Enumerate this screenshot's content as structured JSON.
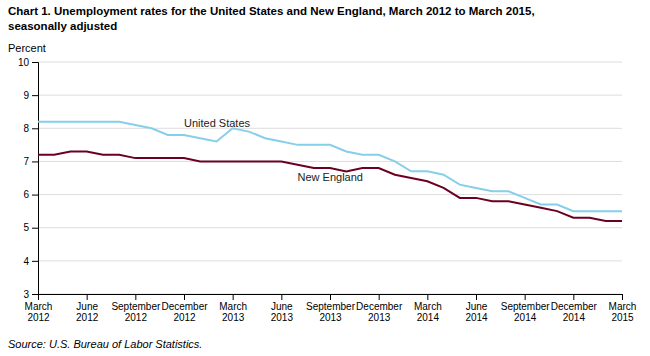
{
  "chart_data": {
    "type": "line",
    "title": "Chart 1. Unemployment rates for the United States and New England, March 2012 to March 2015,",
    "subtitle": "seasonally adjusted",
    "y_label": "Percent",
    "source": "Source: U.S. Bureau of Labor Statistics.",
    "categories": [
      "March\n2012",
      null,
      null,
      "June\n2012",
      null,
      null,
      "September\n2012",
      null,
      null,
      "December\n2012",
      null,
      null,
      "March\n2013",
      null,
      null,
      "June\n2013",
      null,
      null,
      "September\n2013",
      null,
      null,
      "December\n2013",
      null,
      null,
      "March\n2014",
      null,
      null,
      "June\n2014",
      null,
      null,
      "September\n2014",
      null,
      null,
      "December\n2014",
      null,
      null,
      "March\n2015"
    ],
    "series": [
      {
        "name": "United States",
        "color": "#87CEEB",
        "values": [
          8.2,
          8.2,
          8.2,
          8.2,
          8.2,
          8.2,
          8.1,
          8.0,
          7.8,
          7.8,
          7.7,
          7.6,
          8.0,
          7.9,
          7.7,
          7.6,
          7.5,
          7.5,
          7.5,
          7.3,
          7.2,
          7.2,
          7.0,
          6.7,
          6.7,
          6.6,
          6.3,
          6.2,
          6.1,
          6.1,
          5.9,
          5.7,
          5.7,
          5.5,
          5.5,
          5.5,
          5.5
        ]
      },
      {
        "name": "New England",
        "color": "#6B0020",
        "values": [
          7.2,
          7.2,
          7.3,
          7.3,
          7.2,
          7.2,
          7.1,
          7.1,
          7.1,
          7.1,
          7.0,
          7.0,
          7.0,
          7.0,
          7.0,
          7.0,
          6.9,
          6.8,
          6.8,
          6.7,
          6.8,
          6.8,
          6.6,
          6.5,
          6.4,
          6.2,
          5.9,
          5.9,
          5.8,
          5.8,
          5.7,
          5.6,
          5.5,
          5.3,
          5.3,
          5.2,
          5.2
        ]
      }
    ],
    "ylim": [
      3,
      10
    ],
    "yticks": [
      3,
      4,
      5,
      6,
      7,
      8,
      9,
      10
    ],
    "grid": true
  }
}
